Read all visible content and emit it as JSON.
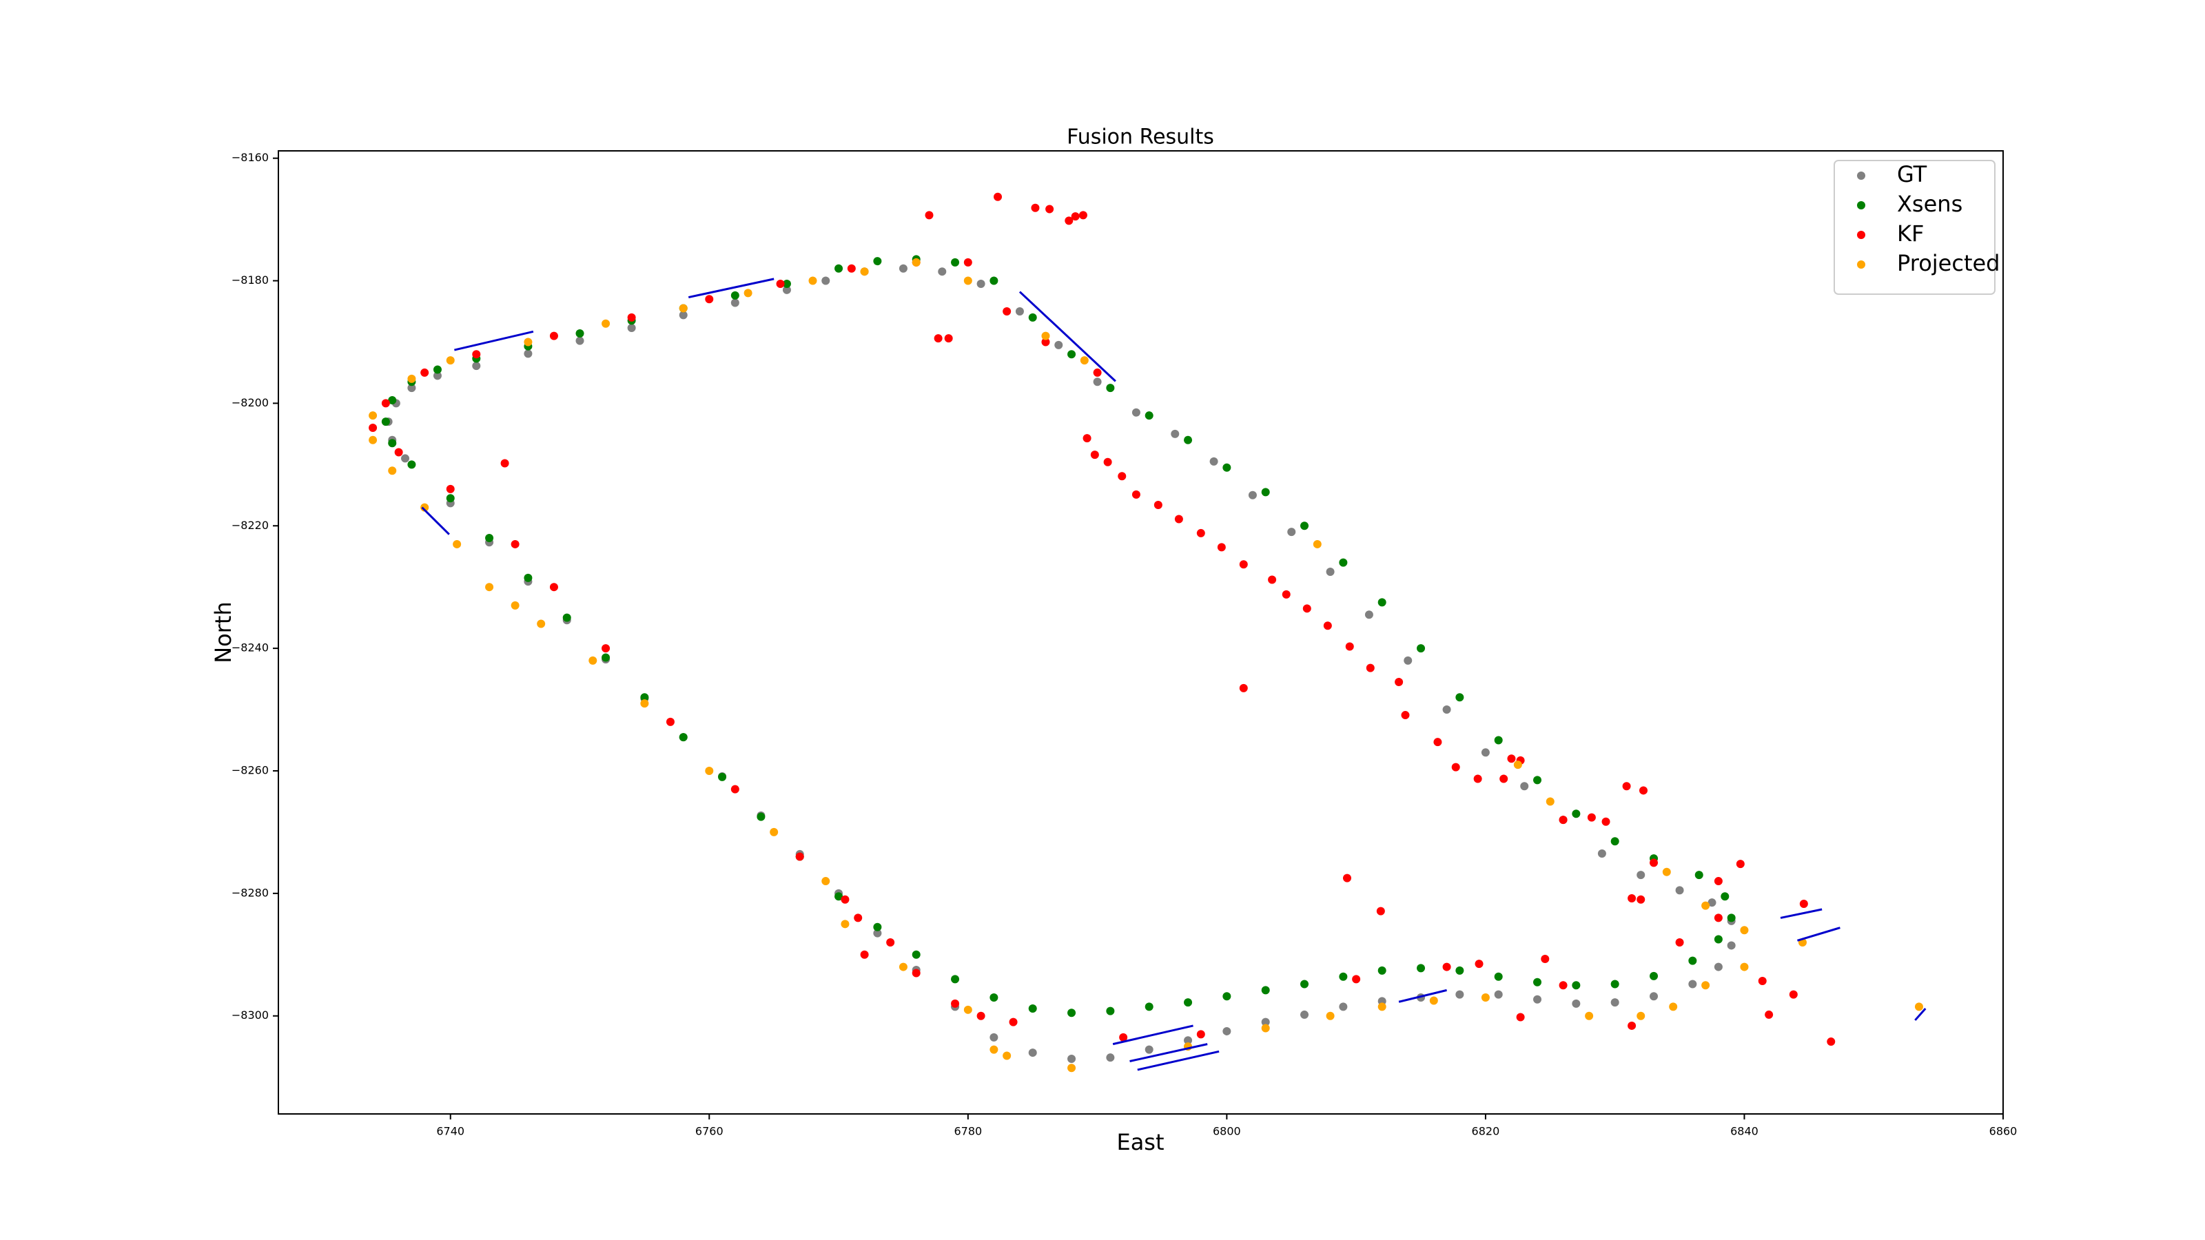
{
  "chart_data": {
    "type": "scatter",
    "title": "Fusion Results",
    "xlabel": "East",
    "ylabel": "North",
    "xlim": [
      6726.7,
      6860
    ],
    "ylim": [
      -8316,
      -8158.8
    ],
    "xticks": [
      6740,
      6760,
      6780,
      6800,
      6820,
      6840,
      6860
    ],
    "yticks": [
      {
        "value": -8160,
        "label": "−8160"
      },
      {
        "value": -8180,
        "label": "−8180"
      },
      {
        "value": -8200,
        "label": "−8200"
      },
      {
        "value": -8220,
        "label": "−8220"
      },
      {
        "value": -8240,
        "label": "−8240"
      },
      {
        "value": -8260,
        "label": "−8260"
      },
      {
        "value": -8280,
        "label": "−8280"
      },
      {
        "value": -8300,
        "label": "−8300"
      }
    ],
    "grid": false,
    "legend": "upper right",
    "series": [
      {
        "name": "GT",
        "color": "#808080",
        "x": [
          6766,
          6762,
          6758,
          6754,
          6750,
          6746,
          6742,
          6739,
          6737,
          6735.8,
          6735.2,
          6735.5,
          6736.5,
          6740,
          6743,
          6746,
          6749,
          6752,
          6755,
          6758,
          6761,
          6764,
          6767,
          6770,
          6773,
          6776,
          6779,
          6782,
          6785,
          6788,
          6791,
          6794,
          6797,
          6800,
          6803,
          6806,
          6809,
          6812,
          6815,
          6818,
          6821,
          6824,
          6827,
          6830,
          6833,
          6836,
          6838,
          6839,
          6839,
          6837.5,
          6835,
          6832,
          6829,
          6826,
          6823,
          6820,
          6817,
          6814,
          6811,
          6808,
          6805,
          6802,
          6799,
          6796,
          6793,
          6790,
          6787,
          6784,
          6781,
          6778,
          6775,
          6772,
          6769
        ],
        "y": [
          -8181.5,
          -8183.6,
          -8185.6,
          -8187.7,
          -8189.8,
          -8191.9,
          -8193.9,
          -8195.5,
          -8197.5,
          -8200,
          -8203,
          -8206,
          -8209,
          -8216.3,
          -8222.7,
          -8229.1,
          -8235.4,
          -8241.8,
          -8248.2,
          -8254.5,
          -8260.9,
          -8267.3,
          -8273.6,
          -8280,
          -8286.5,
          -8292.5,
          -8298.5,
          -8303.5,
          -8306,
          -8307,
          -8306.8,
          -8305.5,
          -8304,
          -8302.5,
          -8301,
          -8299.8,
          -8298.5,
          -8297.6,
          -8297,
          -8296.5,
          -8296.5,
          -8297.3,
          -8298,
          -8297.8,
          -8296.8,
          -8294.8,
          -8292,
          -8288.5,
          -8284.5,
          -8281.5,
          -8279.5,
          -8277,
          -8273.5,
          -8268,
          -8262.5,
          -8257,
          -8250,
          -8242,
          -8234.5,
          -8227.5,
          -8221,
          -8215,
          -8209.5,
          -8205,
          -8201.5,
          -8196.5,
          -8190.5,
          -8185,
          -8180.5,
          -8178.5,
          -8178,
          -8178.5,
          -8180
        ]
      },
      {
        "name": "Xsens",
        "color": "#008000",
        "x": [
          6766,
          6762,
          6758,
          6754,
          6750,
          6746,
          6742,
          6739,
          6737,
          6735.5,
          6735,
          6735.5,
          6737,
          6740,
          6743,
          6746,
          6749,
          6752,
          6755,
          6758,
          6761,
          6764,
          6767,
          6770,
          6773,
          6776,
          6779,
          6782,
          6785,
          6788,
          6791,
          6794,
          6797,
          6800,
          6803,
          6806,
          6809,
          6812,
          6815,
          6818,
          6821,
          6824,
          6827,
          6830,
          6833,
          6836,
          6838,
          6839,
          6838.5,
          6836.5,
          6833,
          6830,
          6827,
          6824,
          6821,
          6818,
          6815,
          6812,
          6809,
          6806,
          6803,
          6800,
          6797,
          6794,
          6791,
          6788,
          6785,
          6782,
          6779,
          6776,
          6773,
          6770
        ],
        "y": [
          -8180.5,
          -8182.4,
          -8184.5,
          -8186.5,
          -8188.6,
          -8190.7,
          -8192.7,
          -8194.5,
          -8196.5,
          -8199.5,
          -8203,
          -8206.5,
          -8210,
          -8215.5,
          -8222,
          -8228.5,
          -8235,
          -8241.5,
          -8248,
          -8254.5,
          -8261,
          -8267.5,
          -8274,
          -8280.5,
          -8285.5,
          -8290,
          -8294,
          -8297,
          -8298.8,
          -8299.5,
          -8299.2,
          -8298.5,
          -8297.8,
          -8296.8,
          -8295.8,
          -8294.8,
          -8293.6,
          -8292.6,
          -8292.2,
          -8292.6,
          -8293.6,
          -8294.5,
          -8295,
          -8294.8,
          -8293.5,
          -8291,
          -8287.5,
          -8284,
          -8280.5,
          -8277,
          -8274.3,
          -8271.5,
          -8267,
          -8261.5,
          -8255,
          -8248,
          -8240,
          -8232.5,
          -8226,
          -8220,
          -8214.5,
          -8210.5,
          -8206,
          -8202,
          -8197.5,
          -8192,
          -8186,
          -8180,
          -8177,
          -8176.5,
          -8176.8,
          -8178
        ]
      },
      {
        "name": "KF",
        "color": "#ff0000",
        "x": [
          6765.5,
          6760,
          6754,
          6748,
          6742,
          6738,
          6735,
          6734,
          6736,
          6740,
          6745,
          6748,
          6752,
          6757,
          6762,
          6767,
          6770.5,
          6771.5,
          6774,
          6772,
          6776,
          6779,
          6781,
          6783.5,
          6792,
          6798,
          6810,
          6817,
          6819.5,
          6826,
          6835,
          6838,
          6838,
          6833,
          6826,
          6822,
          6790,
          6786,
          6783,
          6780,
          6776,
          6771,
          6782.3,
          6785.2,
          6786.3,
          6787.8,
          6788.3,
          6788.9,
          6777,
          6777.7,
          6778.5,
          6744.2,
          6801.3,
          6809.3,
          6811.9,
          6830.9,
          6832.2,
          6839.7,
          6844.6,
          6846.7,
          6843.8,
          6841.9,
          6841.4,
          6822.7,
          6824.6,
          6831.3,
          6832,
          6831.3,
          6789.2,
          6789.8,
          6790.8,
          6791.9,
          6793,
          6794.7,
          6796.3,
          6798,
          6799.6,
          6801.3,
          6803.5,
          6804.6,
          6806.2,
          6807.8,
          6809.5,
          6811.1,
          6813.3,
          6813.8,
          6816.3,
          6817.7,
          6819.4,
          6821.4,
          6822.7,
          6828.2,
          6829.3
        ],
        "y": [
          -8180.5,
          -8183,
          -8186,
          -8189,
          -8192,
          -8195,
          -8200,
          -8204,
          -8208,
          -8214,
          -8223,
          -8230,
          -8240,
          -8252,
          -8263,
          -8274,
          -8281,
          -8284,
          -8288,
          -8290,
          -8293,
          -8298,
          -8300,
          -8301,
          -8303.5,
          -8303,
          -8294,
          -8292,
          -8291.5,
          -8295,
          -8288,
          -8284,
          -8278,
          -8275,
          -8268,
          -8258,
          -8195,
          -8190,
          -8185,
          -8177,
          -8177,
          -8178,
          -8166.3,
          -8168.1,
          -8168.3,
          -8170.2,
          -8169.5,
          -8169.3,
          -8169.3,
          -8189.4,
          -8189.4,
          -8209.8,
          -8246.5,
          -8277.5,
          -8282.9,
          -8262.5,
          -8263.2,
          -8275.2,
          -8281.7,
          -8304.2,
          -8296.5,
          -8299.8,
          -8294.3,
          -8300.2,
          -8290.7,
          -8301.6,
          -8281,
          -8280.8,
          -8205.7,
          -8208.4,
          -8209.6,
          -8211.9,
          -8214.9,
          -8216.6,
          -8218.9,
          -8221.2,
          -8223.5,
          -8226.3,
          -8228.8,
          -8231.2,
          -8233.5,
          -8236.3,
          -8239.7,
          -8243.2,
          -8245.5,
          -8250.9,
          -8255.3,
          -8259.4,
          -8261.3,
          -8261.3,
          -8258.3,
          -8267.6,
          -8268.3
        ]
      },
      {
        "name": "Projected",
        "color": "#ffa500",
        "x": [
          6772,
          6768,
          6763,
          6758,
          6752,
          6746,
          6740,
          6737,
          6734,
          6734,
          6735.5,
          6738,
          6740.5,
          6743,
          6745,
          6747,
          6751,
          6755,
          6760,
          6765,
          6769,
          6770.5,
          6775,
          6780,
          6782,
          6783,
          6788,
          6797,
          6803,
          6808,
          6812,
          6816,
          6820,
          6828,
          6832,
          6834.5,
          6837,
          6840,
          6840,
          6837,
          6834,
          6844.5,
          6853.5,
          6822.5,
          6825,
          6807,
          6789,
          6786,
          6780,
          6776
        ],
        "y": [
          -8178.5,
          -8180,
          -8182,
          -8184.5,
          -8187,
          -8190,
          -8193,
          -8196,
          -8202,
          -8206,
          -8211,
          -8217,
          -8223,
          -8230,
          -8233,
          -8236,
          -8242,
          -8249,
          -8260,
          -8270,
          -8278,
          -8285,
          -8292,
          -8299,
          -8305.5,
          -8306.5,
          -8308.5,
          -8305,
          -8302,
          -8300,
          -8298.5,
          -8297.5,
          -8297,
          -8300,
          -8300,
          -8298.5,
          -8295,
          -8292,
          -8286,
          -8282,
          -8276.5,
          -8288,
          -8298.5,
          -8259,
          -8265,
          -8223,
          -8193,
          -8189,
          -8180,
          -8177
        ]
      }
    ],
    "segment_color": "#0000cc",
    "segments": [
      {
        "x": [
          6740.3,
          6746.4
        ],
        "y": [
          -8191.3,
          -8188.3
        ]
      },
      {
        "x": [
          6758.4,
          6765
        ],
        "y": [
          -8182.7,
          -8179.7
        ]
      },
      {
        "x": [
          6784,
          6791.4
        ],
        "y": [
          -8181.8,
          -8196.4
        ]
      },
      {
        "x": [
          6737.8,
          6739.9
        ],
        "y": [
          -8217,
          -8221.4
        ]
      },
      {
        "x": [
          6842.8,
          6846
        ],
        "y": [
          -8284,
          -8282.6
        ]
      },
      {
        "x": [
          6844.1,
          6847.4
        ],
        "y": [
          -8287.7,
          -8285.6
        ]
      },
      {
        "x": [
          6853.2,
          6854
        ],
        "y": [
          -8300.7,
          -8298.8
        ]
      },
      {
        "x": [
          6791.2,
          6797.4
        ],
        "y": [
          -8304.6,
          -8301.6
        ]
      },
      {
        "x": [
          6792.5,
          6798.5
        ],
        "y": [
          -8307.4,
          -8304.6
        ]
      },
      {
        "x": [
          6793.1,
          6799.4
        ],
        "y": [
          -8308.8,
          -8305.8
        ]
      },
      {
        "x": [
          6813.3,
          6817
        ],
        "y": [
          -8297.7,
          -8295.8
        ]
      }
    ]
  }
}
